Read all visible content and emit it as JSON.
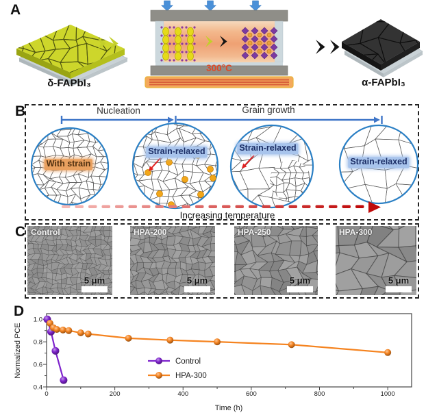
{
  "figure": {
    "panel_a": {
      "label": "A",
      "delta_film_label": "δ-FAPbI₃",
      "alpha_film_label": "α-FAPbI₃",
      "press_temperature": "300°C"
    },
    "panel_b": {
      "label": "B",
      "nucleation_label": "Nucleation",
      "grain_growth_label": "Grain growth",
      "with_strain_label": "With strain",
      "strain_relaxed_label": "Strain-relaxed",
      "temperature_arrow_label": "Increasing temperature"
    },
    "panel_c": {
      "label": "C",
      "images": [
        {
          "title": "Control",
          "scale_bar": "5 μm"
        },
        {
          "title": "HPA-200",
          "scale_bar": "5 μm"
        },
        {
          "title": "HPA-250",
          "scale_bar": "5 μm"
        },
        {
          "title": "HPA-300",
          "scale_bar": "5 μm"
        }
      ]
    },
    "panel_d": {
      "label": "D"
    },
    "colors": {
      "highlight_strain": "#e9a05f",
      "highlight_relaxed": "#a8c4ec",
      "heat_text": "#dd4a28",
      "measure_arrow_blue": "#3f76c8",
      "circle_stroke": "#2a7fc4",
      "temp_gradient_start": "#f6bab6",
      "temp_gradient_end": "#c00c0c",
      "delta_film_yellow": "#cdd62b",
      "alpha_film_black": "#333333"
    }
  },
  "chart_data": {
    "type": "line",
    "title": "",
    "xlabel": "Time (h)",
    "ylabel": "Normalized PCE",
    "xlim": [
      0,
      1070
    ],
    "ylim": [
      0.4,
      1.05
    ],
    "xticks": [
      0,
      200,
      400,
      600,
      800,
      1000
    ],
    "yticks": [
      0.4,
      0.6,
      0.8,
      1.0
    ],
    "x_minor_step": 100,
    "y_minor_step": 0.1,
    "grid": false,
    "legend_position": "inside-center",
    "series": [
      {
        "name": "Control",
        "color": "#7d22cc",
        "x": [
          2,
          13,
          26,
          50
        ],
        "y": [
          1.0,
          0.89,
          0.72,
          0.46
        ]
      },
      {
        "name": "HPA-300",
        "color": "#f5831f",
        "x": [
          10,
          20,
          30,
          48,
          65,
          100,
          122,
          240,
          362,
          500,
          718,
          1000
        ],
        "y": [
          0.965,
          0.925,
          0.91,
          0.905,
          0.9,
          0.88,
          0.87,
          0.832,
          0.815,
          0.8,
          0.775,
          0.705
        ]
      }
    ]
  }
}
